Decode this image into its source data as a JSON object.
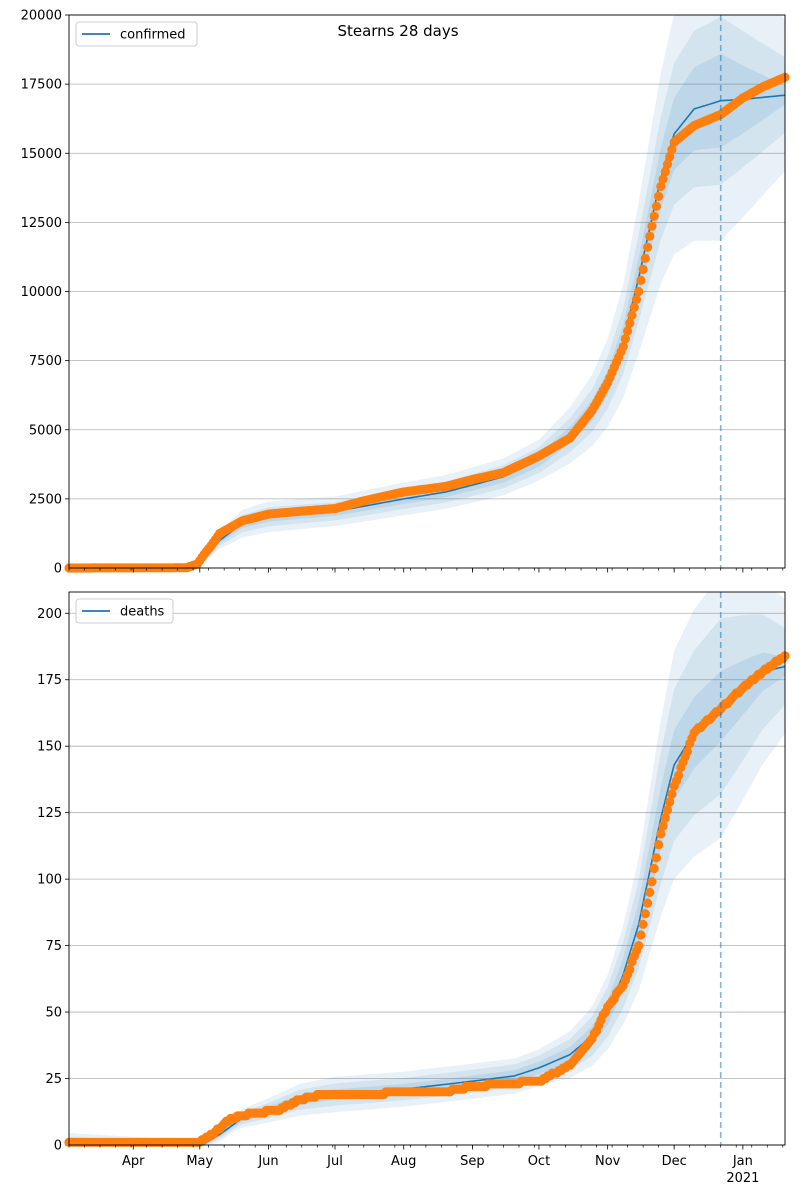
{
  "figure": {
    "title": "Stearns 28 days"
  },
  "colors": {
    "observed": "#ff7f0e",
    "model": "#1f77b4",
    "band": "#1f77b4",
    "grid": "#b0b0b0",
    "forecast_line": "#1f77b4"
  },
  "x_axis": {
    "start": "2020-03-03",
    "end": "2021-01-20",
    "month_ticks": [
      {
        "date": "2020-04-01",
        "label": "Apr"
      },
      {
        "date": "2020-05-01",
        "label": "May"
      },
      {
        "date": "2020-06-01",
        "label": "Jun"
      },
      {
        "date": "2020-07-01",
        "label": "Jul"
      },
      {
        "date": "2020-08-01",
        "label": "Aug"
      },
      {
        "date": "2020-09-01",
        "label": "Sep"
      },
      {
        "date": "2020-10-01",
        "label": "Oct"
      },
      {
        "date": "2020-11-01",
        "label": "Nov"
      },
      {
        "date": "2020-12-01",
        "label": "Dec"
      },
      {
        "date": "2021-01-01",
        "label": "Jan",
        "sublabel": "2021"
      }
    ],
    "forecast_date": "2020-12-22"
  },
  "chart_data": [
    {
      "type": "line",
      "legend": "confirmed",
      "legend_position": "top-left",
      "ylim": [
        0,
        20000
      ],
      "yticks": [
        0,
        2500,
        5000,
        7500,
        10000,
        12500,
        15000,
        17500,
        20000
      ],
      "grid": true,
      "observed_end": "2021-01-20",
      "model_keys": [
        [
          "2020-03-03",
          0
        ],
        [
          "2020-04-28",
          50
        ],
        [
          "2020-05-03",
          300
        ],
        [
          "2020-05-10",
          1000
        ],
        [
          "2020-05-20",
          1600
        ],
        [
          "2020-06-01",
          1850
        ],
        [
          "2020-06-15",
          1950
        ],
        [
          "2020-07-01",
          2050
        ],
        [
          "2020-07-15",
          2250
        ],
        [
          "2020-08-01",
          2500
        ],
        [
          "2020-08-20",
          2750
        ],
        [
          "2020-09-01",
          3000
        ],
        [
          "2020-09-15",
          3300
        ],
        [
          "2020-10-01",
          3900
        ],
        [
          "2020-10-15",
          4800
        ],
        [
          "2020-10-25",
          5700
        ],
        [
          "2020-11-01",
          6700
        ],
        [
          "2020-11-08",
          8200
        ],
        [
          "2020-11-15",
          10500
        ],
        [
          "2020-11-20",
          12300
        ],
        [
          "2020-11-25",
          14100
        ],
        [
          "2020-12-01",
          15700
        ],
        [
          "2020-12-10",
          16600
        ],
        [
          "2020-12-22",
          16900
        ],
        [
          "2021-01-01",
          16950
        ],
        [
          "2021-01-20",
          17100
        ]
      ],
      "observed_keys": [
        [
          "2020-03-03",
          0
        ],
        [
          "2020-04-25",
          10
        ],
        [
          "2020-04-30",
          150
        ],
        [
          "2020-05-03",
          500
        ],
        [
          "2020-05-06",
          800
        ],
        [
          "2020-05-10",
          1250
        ],
        [
          "2020-05-20",
          1700
        ],
        [
          "2020-06-01",
          1950
        ],
        [
          "2020-06-15",
          2050
        ],
        [
          "2020-07-01",
          2150
        ],
        [
          "2020-07-15",
          2450
        ],
        [
          "2020-08-01",
          2750
        ],
        [
          "2020-08-20",
          2950
        ],
        [
          "2020-09-01",
          3200
        ],
        [
          "2020-09-15",
          3450
        ],
        [
          "2020-10-01",
          4050
        ],
        [
          "2020-10-15",
          4700
        ],
        [
          "2020-10-25",
          5700
        ],
        [
          "2020-11-01",
          6700
        ],
        [
          "2020-11-08",
          8000
        ],
        [
          "2020-11-15",
          10000
        ],
        [
          "2020-11-20",
          12000
        ],
        [
          "2020-11-25",
          13800
        ],
        [
          "2020-12-01",
          15400
        ],
        [
          "2020-12-10",
          16000
        ],
        [
          "2020-12-22",
          16400
        ],
        [
          "2021-01-01",
          17000
        ],
        [
          "2021-01-10",
          17400
        ],
        [
          "2021-01-20",
          17750
        ]
      ],
      "band_keys": [
        [
          "2020-03-03",
          0.05,
          0.06,
          0.08
        ],
        [
          "2020-05-15",
          0.1,
          0.2,
          0.32
        ],
        [
          "2020-07-01",
          0.08,
          0.16,
          0.26
        ],
        [
          "2020-10-01",
          0.06,
          0.12,
          0.19
        ],
        [
          "2020-11-15",
          0.07,
          0.15,
          0.26
        ],
        [
          "2020-12-22",
          0.1,
          0.18,
          0.3
        ],
        [
          "2021-01-20",
          0.02,
          0.08,
          0.16
        ]
      ]
    },
    {
      "type": "line",
      "legend": "deaths",
      "legend_position": "top-left",
      "ylim": [
        0,
        208
      ],
      "yticks": [
        0,
        25,
        50,
        75,
        100,
        125,
        150,
        175,
        200
      ],
      "grid": true,
      "observed_end": "2021-01-20",
      "model_keys": [
        [
          "2020-03-03",
          0
        ],
        [
          "2020-05-03",
          0.5
        ],
        [
          "2020-05-10",
          4
        ],
        [
          "2020-05-20",
          10
        ],
        [
          "2020-06-01",
          13
        ],
        [
          "2020-06-15",
          17
        ],
        [
          "2020-07-01",
          19
        ],
        [
          "2020-08-01",
          21
        ],
        [
          "2020-09-01",
          24
        ],
        [
          "2020-09-20",
          26
        ],
        [
          "2020-10-01",
          29
        ],
        [
          "2020-10-15",
          34
        ],
        [
          "2020-10-25",
          41
        ],
        [
          "2020-11-01",
          50
        ],
        [
          "2020-11-08",
          64
        ],
        [
          "2020-11-15",
          83
        ],
        [
          "2020-11-20",
          103
        ],
        [
          "2020-11-25",
          123
        ],
        [
          "2020-12-01",
          143
        ],
        [
          "2020-12-10",
          155
        ],
        [
          "2020-12-22",
          165
        ],
        [
          "2021-01-01",
          172
        ],
        [
          "2021-01-10",
          178
        ],
        [
          "2021-01-20",
          180
        ]
      ],
      "observed_keys": [
        [
          "2020-03-03",
          1
        ],
        [
          "2020-04-30",
          1
        ],
        [
          "2020-05-03",
          2
        ],
        [
          "2020-05-08",
          5
        ],
        [
          "2020-05-15",
          10
        ],
        [
          "2020-05-25",
          12
        ],
        [
          "2020-06-05",
          13
        ],
        [
          "2020-06-15",
          17
        ],
        [
          "2020-06-25",
          19
        ],
        [
          "2020-07-15",
          19
        ],
        [
          "2020-08-01",
          20
        ],
        [
          "2020-08-20",
          20
        ],
        [
          "2020-09-01",
          22
        ],
        [
          "2020-09-15",
          23
        ],
        [
          "2020-10-01",
          24
        ],
        [
          "2020-10-15",
          30
        ],
        [
          "2020-10-25",
          40
        ],
        [
          "2020-11-01",
          52
        ],
        [
          "2020-11-08",
          60
        ],
        [
          "2020-11-15",
          75
        ],
        [
          "2020-11-20",
          95
        ],
        [
          "2020-11-25",
          117
        ],
        [
          "2020-12-01",
          135
        ],
        [
          "2020-12-10",
          155
        ],
        [
          "2020-12-22",
          164
        ],
        [
          "2021-01-01",
          172
        ],
        [
          "2021-01-10",
          178
        ],
        [
          "2021-01-20",
          184
        ]
      ],
      "band_keys": [
        [
          "2020-03-03",
          1.5,
          3,
          4.5
        ],
        [
          "2020-05-15",
          0.12,
          0.22,
          0.35
        ],
        [
          "2020-07-01",
          0.1,
          0.22,
          0.35
        ],
        [
          "2020-10-01",
          0.08,
          0.16,
          0.24
        ],
        [
          "2020-11-15",
          0.1,
          0.2,
          0.3
        ],
        [
          "2020-12-22",
          0.08,
          0.2,
          0.3
        ],
        [
          "2021-01-20",
          0.02,
          0.08,
          0.14
        ]
      ]
    }
  ]
}
